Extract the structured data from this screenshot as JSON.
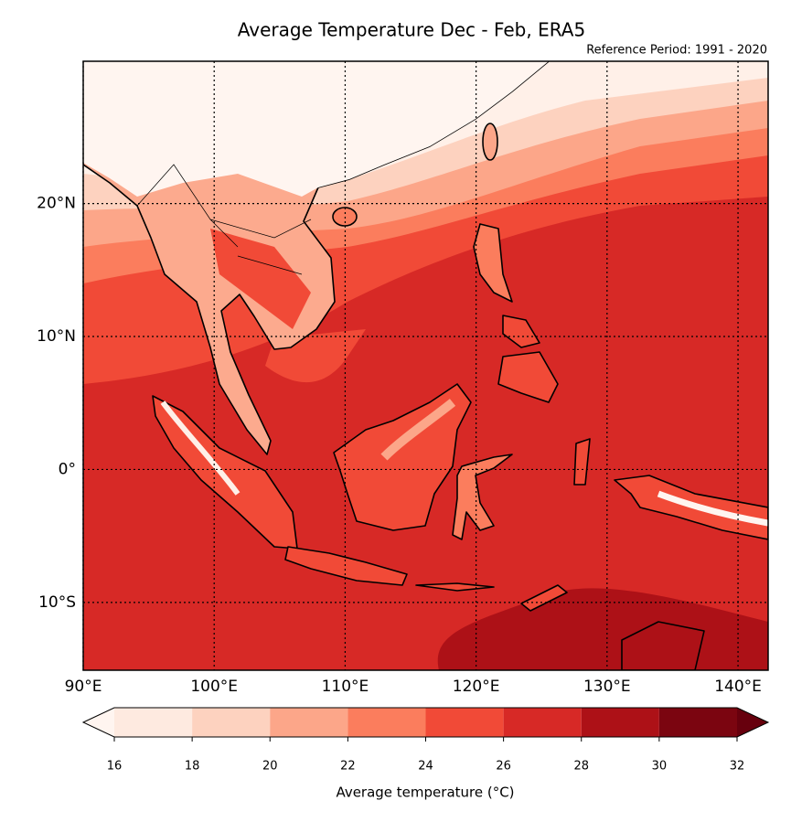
{
  "title": "Average Temperature Dec - Feb, ERA5",
  "subtitle": "Reference Period: 1991 - 2020",
  "map": {
    "xlim": [
      90,
      142.3
    ],
    "ylim": [
      -15.1,
      30.7
    ],
    "xticks": [
      {
        "value": 90,
        "label": "90°E"
      },
      {
        "value": 100,
        "label": "100°E"
      },
      {
        "value": 110,
        "label": "110°E"
      },
      {
        "value": 120,
        "label": "120°E"
      },
      {
        "value": 130,
        "label": "130°E"
      },
      {
        "value": 140,
        "label": "140°E"
      }
    ],
    "yticks": [
      {
        "value": 20,
        "label": "20°N"
      },
      {
        "value": 10,
        "label": "10°N"
      },
      {
        "value": 0,
        "label": "0°"
      },
      {
        "value": -10,
        "label": "10°S"
      }
    ],
    "grid": true
  },
  "colorbar": {
    "label": "Average temperature (°C)",
    "ticks": [
      16,
      18,
      20,
      22,
      24,
      26,
      28,
      30,
      32
    ],
    "colors": [
      "#feeae0",
      "#fdd2bf",
      "#fca689",
      "#fb7d5d",
      "#f14a37",
      "#d72926",
      "#ad1117",
      "#7b0510"
    ],
    "under_color": "#fff5f0",
    "over_color": "#67000d"
  }
}
